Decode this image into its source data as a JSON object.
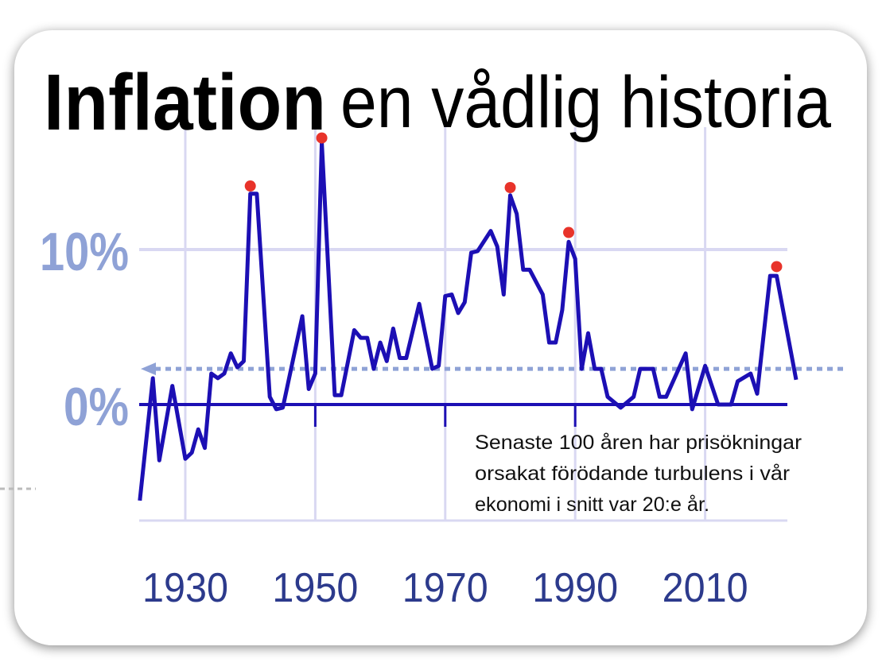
{
  "title": {
    "bold": "Inflation",
    "rest": "en vådlig historia"
  },
  "annotation": [
    "Senaste 100 åren har prisökningar",
    "orsakat förödande turbulens i vår",
    "ekonomi i snitt var 20:e år."
  ],
  "colors": {
    "line": "#1c0fb4",
    "peak": "#e8332a",
    "grid": "#d9d8f2",
    "ylabel": "#8fa2d6",
    "xlabel": "#2c3a8c",
    "average": "#8fa2d6"
  },
  "chart_data": {
    "type": "line",
    "title": "Inflation en vådlig historia",
    "xlabel": "",
    "ylabel": "",
    "xlim": [
      1923,
      2024
    ],
    "ylim": [
      -7,
      18
    ],
    "x_ticks": [
      "1930",
      "1950",
      "1970",
      "1990",
      "2010"
    ],
    "x_tick_values": [
      1930,
      1950,
      1970,
      1990,
      2010
    ],
    "y_ticks": [
      "10%",
      "0%"
    ],
    "y_tick_values": [
      10,
      0
    ],
    "grid": true,
    "series": [
      {
        "name": "Inflation",
        "x": [
          1923,
          1925,
          1926,
          1928,
          1930,
          1931,
          1932,
          1933,
          1934,
          1935,
          1936,
          1937,
          1938,
          1939,
          1940,
          1941,
          1943,
          1944,
          1945,
          1948,
          1949,
          1950,
          1951,
          1953,
          1954,
          1956,
          1957,
          1958,
          1959,
          1960,
          1961,
          1962,
          1963,
          1964,
          1966,
          1968,
          1969,
          1970,
          1971,
          1972,
          1973,
          1974,
          1975,
          1977,
          1978,
          1979,
          1980,
          1981,
          1982,
          1983,
          1985,
          1986,
          1987,
          1988,
          1989,
          1990,
          1991,
          1992,
          1993,
          1994,
          1995,
          1997,
          1999,
          2000,
          2002,
          2003,
          2004,
          2007,
          2008,
          2010,
          2012,
          2014,
          2015,
          2017,
          2018,
          2020,
          2021,
          2024
        ],
        "values": [
          -6.2,
          1.7,
          -3.6,
          1.2,
          -3.5,
          -3.1,
          -1.6,
          -2.8,
          2.0,
          1.7,
          2.0,
          3.3,
          2.4,
          2.8,
          13.6,
          13.6,
          0.5,
          -0.3,
          -0.2,
          5.7,
          1.0,
          2.0,
          16.9,
          0.6,
          0.6,
          4.8,
          4.3,
          4.3,
          2.3,
          4.0,
          2.8,
          4.9,
          3.0,
          3.0,
          6.5,
          2.3,
          2.5,
          7.0,
          7.1,
          5.9,
          6.6,
          9.8,
          9.9,
          11.2,
          10.2,
          7.1,
          13.5,
          12.3,
          8.7,
          8.7,
          7.1,
          4.0,
          4.0,
          6.1,
          10.5,
          9.4,
          2.3,
          4.6,
          2.3,
          2.3,
          0.5,
          -0.2,
          0.5,
          2.3,
          2.3,
          0.5,
          0.5,
          3.3,
          -0.3,
          2.5,
          0.0,
          0.0,
          1.5,
          2.0,
          0.7,
          8.3,
          8.3,
          1.6
        ]
      }
    ],
    "peaks": {
      "x": [
        1940,
        1951,
        1980,
        1989,
        2021
      ],
      "values": [
        14.1,
        17.2,
        14.0,
        11.1,
        8.9
      ]
    },
    "average_line": 2.3
  }
}
